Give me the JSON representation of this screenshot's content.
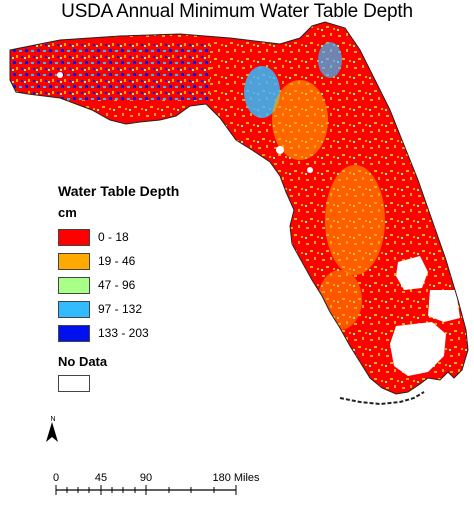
{
  "title": "USDA Annual Minimum Water Table Depth",
  "legend": {
    "title": "Water Table Depth",
    "unit": "cm",
    "classes": [
      {
        "label": "0 - 18",
        "color": "#ff0000"
      },
      {
        "label": "19 - 46",
        "color": "#ffaa00"
      },
      {
        "label": "47 - 96",
        "color": "#aaff88"
      },
      {
        "label": "97 - 132",
        "color": "#33bbff"
      },
      {
        "label": "133 - 203",
        "color": "#0011ee"
      }
    ],
    "no_data": {
      "label": "No Data",
      "color": "#ffffff"
    }
  },
  "north_arrow": {
    "label": "N"
  },
  "scale_bar": {
    "ticks": [
      "0",
      "45",
      "90",
      "180 Miles"
    ]
  },
  "colors": {
    "dominant": "#ff0000",
    "outline": "#222222"
  }
}
